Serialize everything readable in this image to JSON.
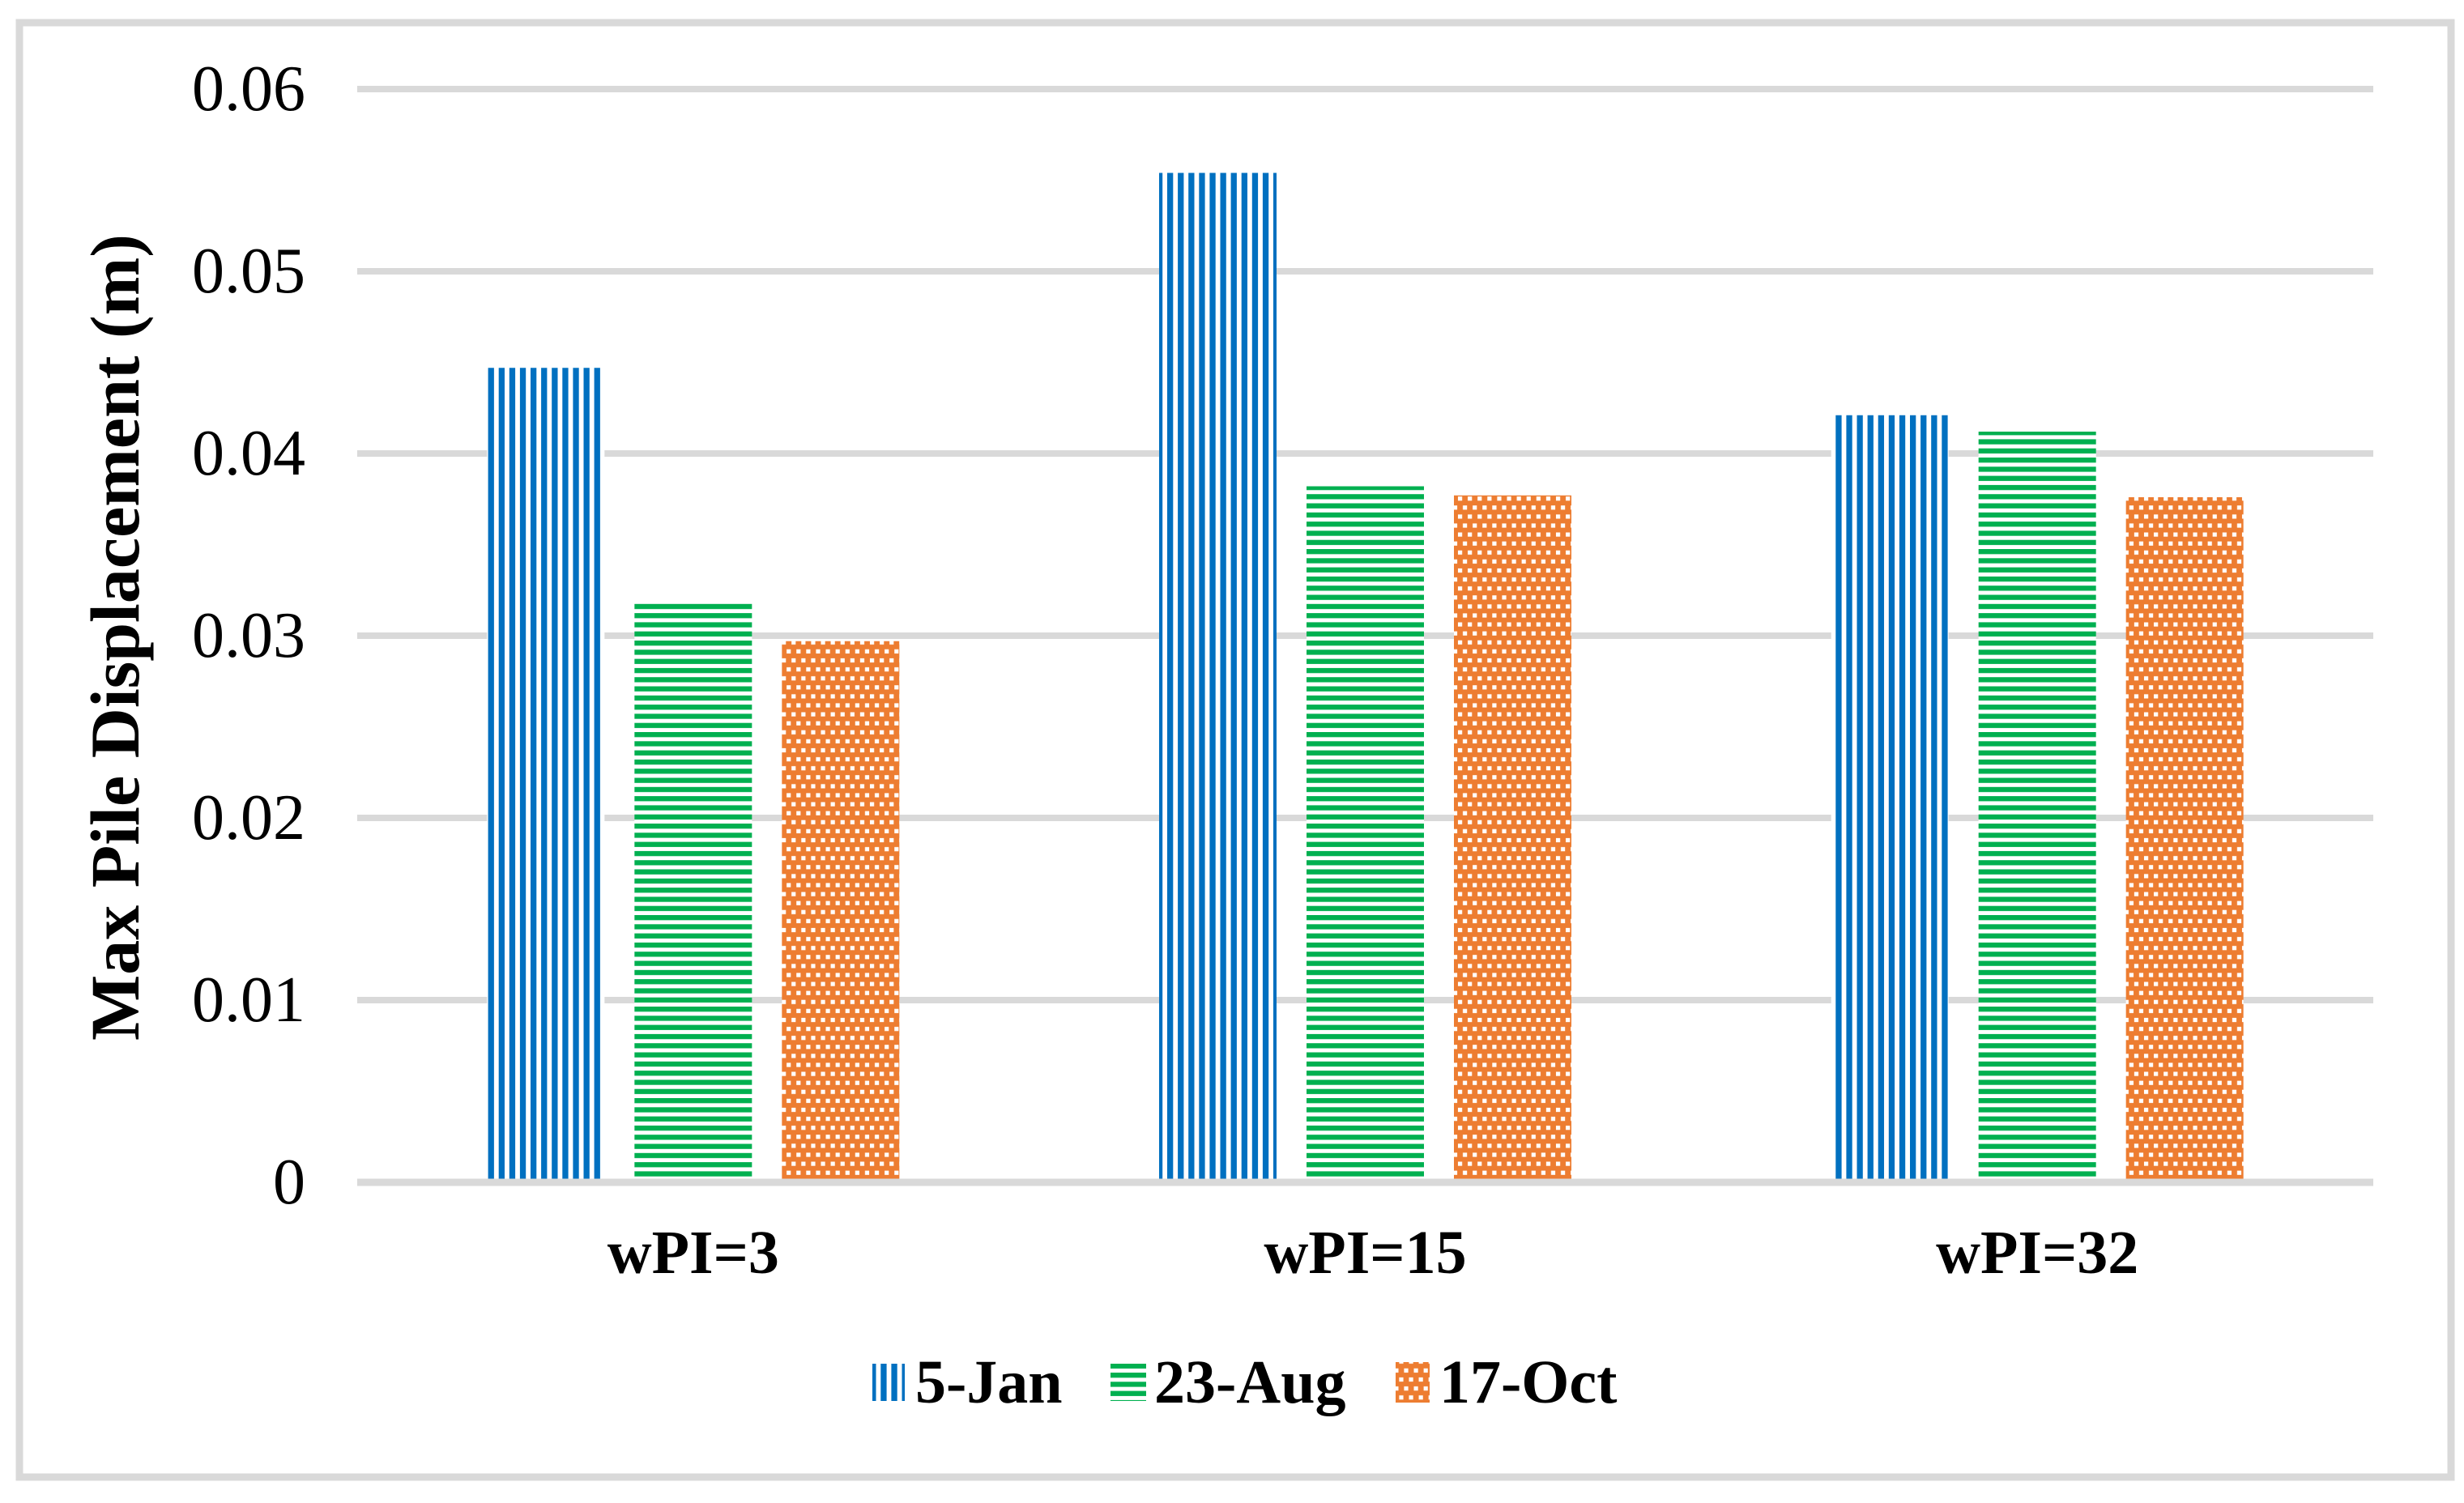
{
  "figure": {
    "background_color": "#FFFFFF",
    "border_color": "#D9D9D9",
    "gridline_color": "#D9D9D9",
    "axis_line_color": "#D9D9D9"
  },
  "chart_data": {
    "type": "bar",
    "title": "",
    "xlabel": "",
    "ylabel": "Max Pile Displacement (m)",
    "categories": [
      "wPI=3",
      "wPI=15",
      "wPI=32"
    ],
    "series": [
      {
        "name": "5-Jan",
        "color": "#0070C0",
        "pattern": "vertical-stripes",
        "values": [
          0.0447,
          0.0554,
          0.0421
        ]
      },
      {
        "name": "23-Aug",
        "color": "#00B050",
        "pattern": "horizontal-stripes",
        "values": [
          0.0318,
          0.0382,
          0.0412
        ]
      },
      {
        "name": "17-Oct",
        "color": "#ED7D31",
        "pattern": "checker-dots",
        "values": [
          0.0297,
          0.0377,
          0.0376
        ]
      }
    ],
    "ylim": [
      0,
      0.06
    ],
    "ytick_step": 0.01,
    "yticks": [
      "0",
      "0.01",
      "0.02",
      "0.03",
      "0.04",
      "0.05",
      "0.06"
    ],
    "grid": "horizontal",
    "legend_position": "bottom"
  }
}
